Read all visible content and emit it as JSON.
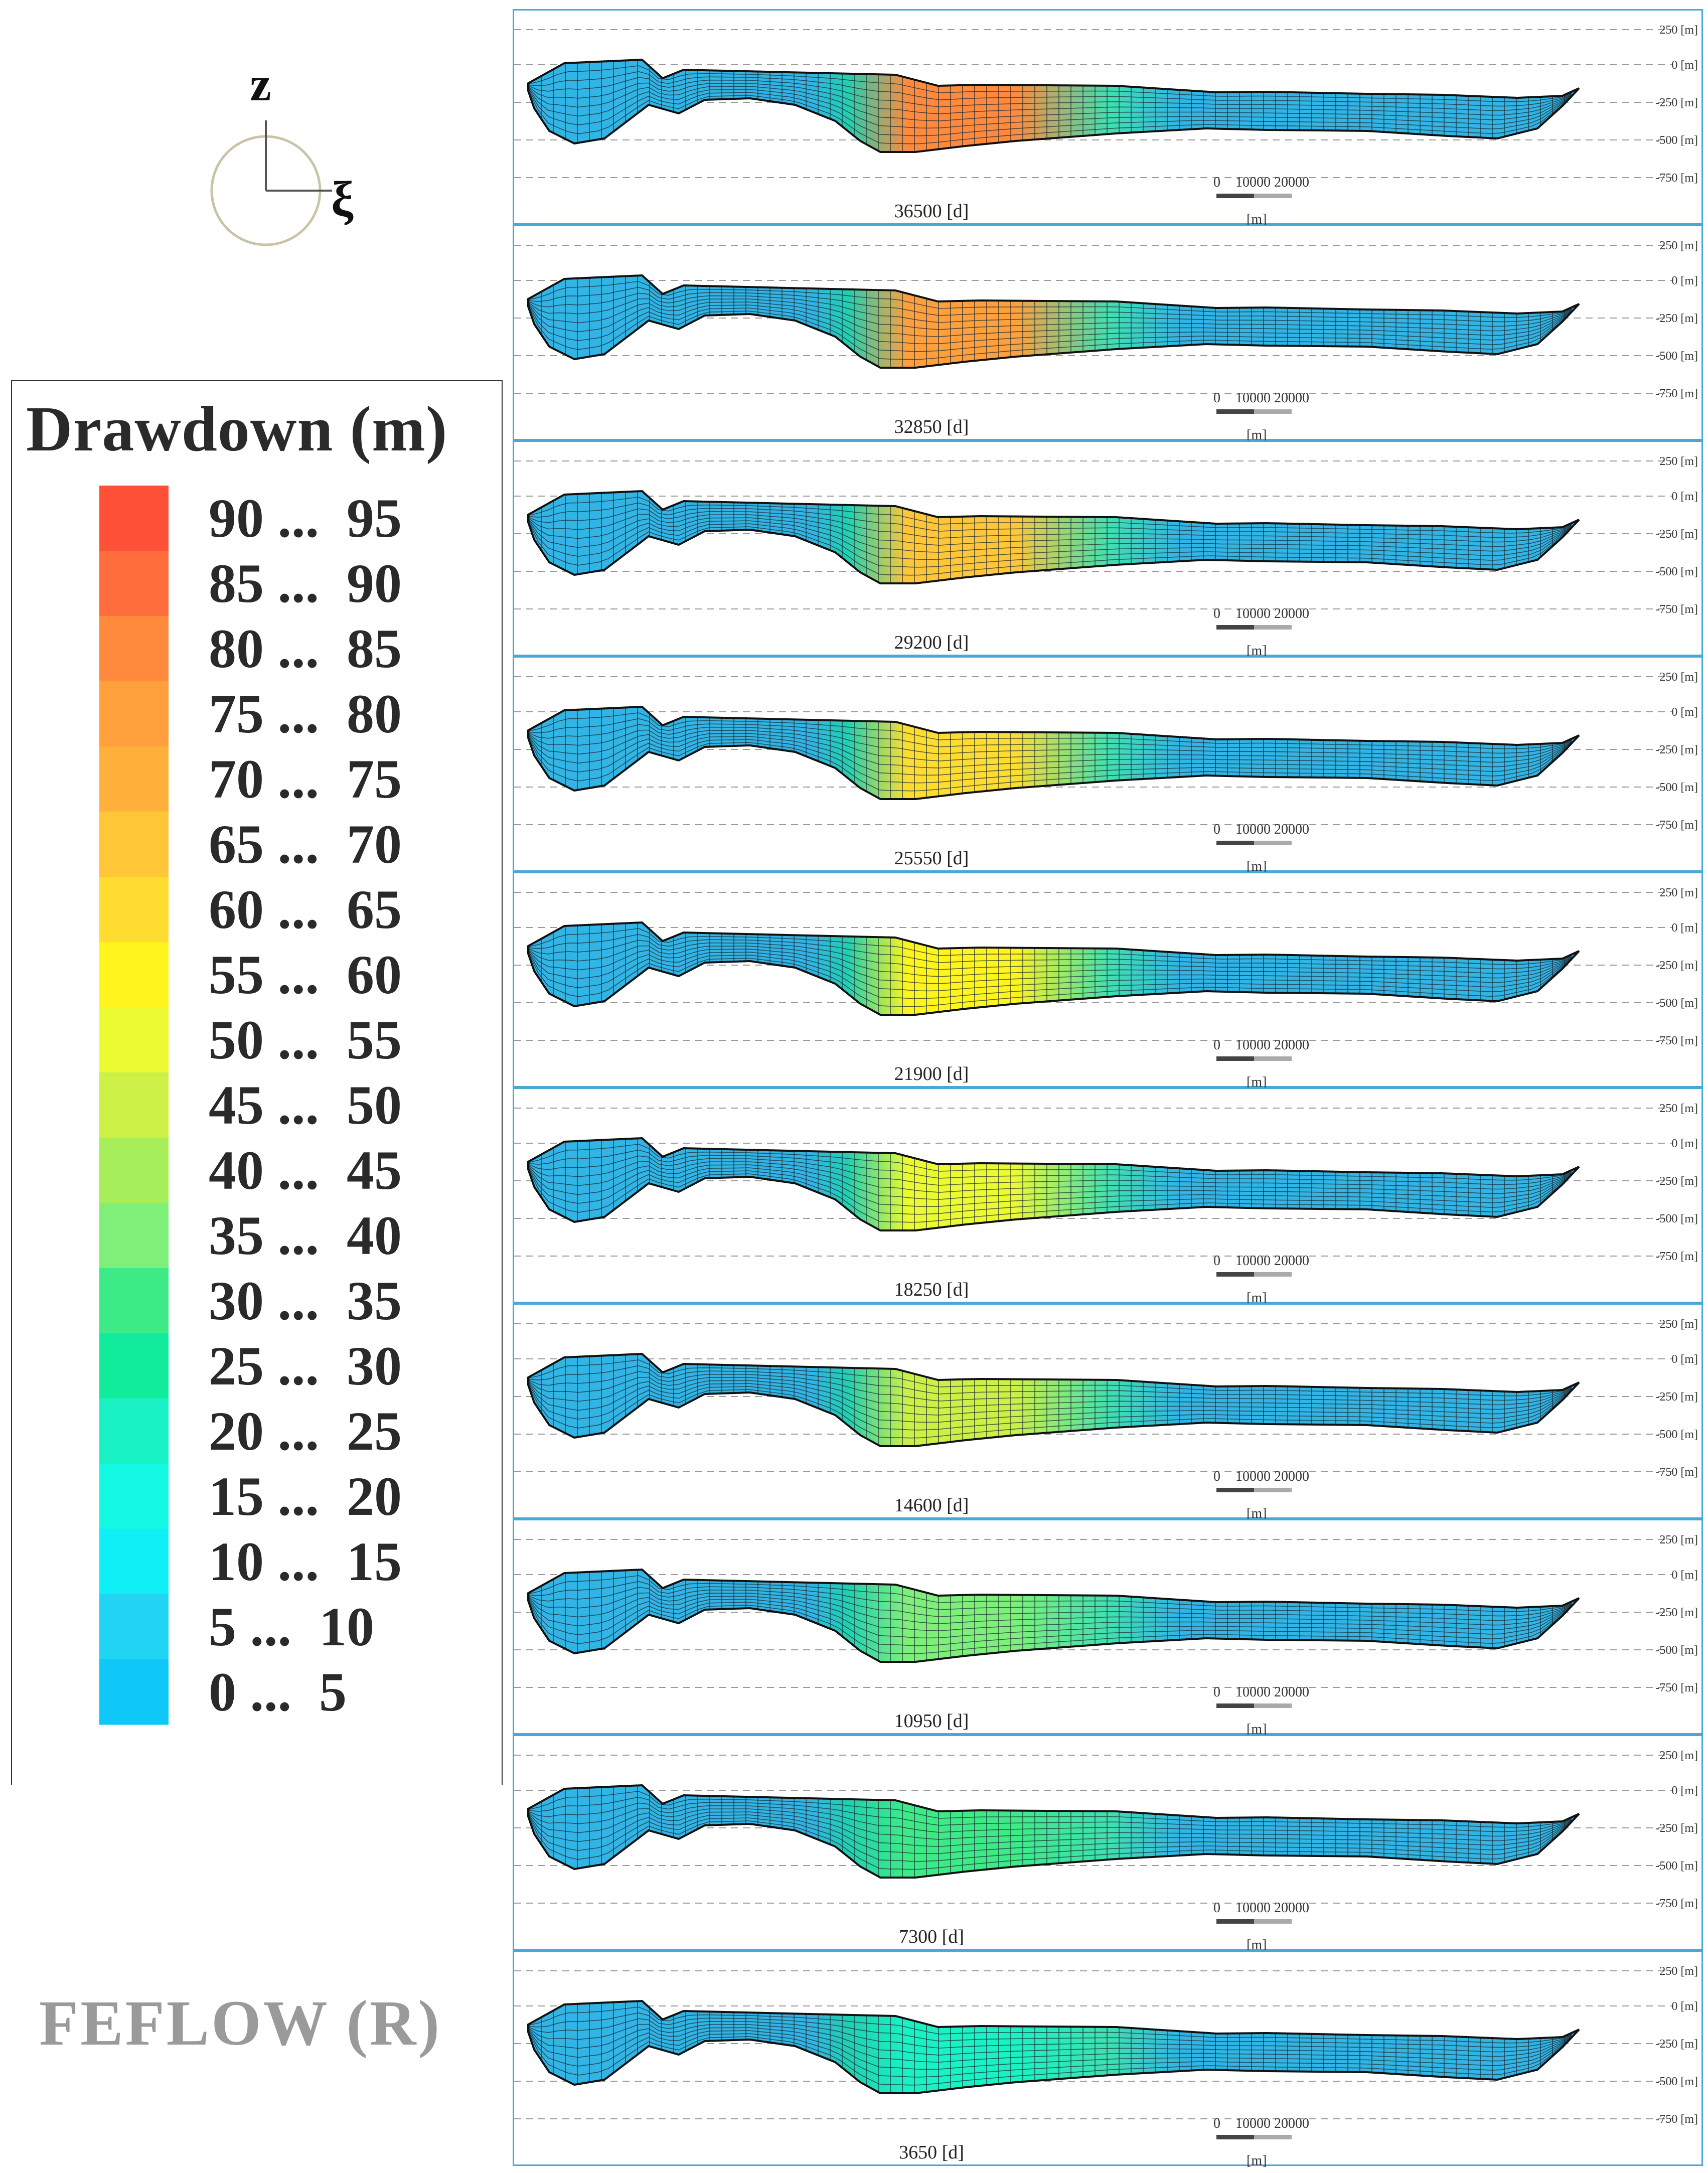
{
  "axes": {
    "vertical": "z",
    "horizontal": "ξ"
  },
  "legend": {
    "title": "Drawdown (m)",
    "classes": [
      {
        "label": "90 ...  95",
        "color": "#ff5138"
      },
      {
        "label": "85 ...  90",
        "color": "#ff6d3c"
      },
      {
        "label": "80 ...  85",
        "color": "#ff8a3e"
      },
      {
        "label": "75 ...  80",
        "color": "#ffa03c"
      },
      {
        "label": "70 ...  75",
        "color": "#ffb03a"
      },
      {
        "label": "65 ...  70",
        "color": "#ffc738"
      },
      {
        "label": "60 ...  65",
        "color": "#ffdd30"
      },
      {
        "label": "55 ...  60",
        "color": "#fff41c"
      },
      {
        "label": "50 ...  55",
        "color": "#ecfa32"
      },
      {
        "label": "45 ...  50",
        "color": "#cdf046"
      },
      {
        "label": "40 ...  45",
        "color": "#a6ef5a"
      },
      {
        "label": "35 ...  40",
        "color": "#7ef07a"
      },
      {
        "label": "30 ...  35",
        "color": "#3deb86"
      },
      {
        "label": "25 ...  30",
        "color": "#11ec9c"
      },
      {
        "label": "20 ...  25",
        "color": "#19f2c4"
      },
      {
        "label": "15 ...  20",
        "color": "#12f8e2"
      },
      {
        "label": "10 ...  15",
        "color": "#0ff0f6"
      },
      {
        "label": "5 ...  10",
        "color": "#22d4f4"
      },
      {
        "label": "0 ...  5",
        "color": "#10c8f8"
      }
    ]
  },
  "brand": "FEFLOW (R)",
  "section": {
    "tick_labels": [
      "250 [m]",
      "0 [m]",
      "-250 [m]",
      "-500 [m]",
      "-750 [m]"
    ],
    "scale_bar": {
      "ticks": [
        "0",
        "10000",
        "20000"
      ],
      "unit": "[m]"
    }
  },
  "snapshots": [
    {
      "label": "36500 [d]",
      "peak_drawdown_class": "80 ... 85"
    },
    {
      "label": "32850 [d]",
      "peak_drawdown_class": "75 ... 80"
    },
    {
      "label": "29200 [d]",
      "peak_drawdown_class": "65 ... 70"
    },
    {
      "label": "25550 [d]",
      "peak_drawdown_class": "60 ... 65"
    },
    {
      "label": "21900 [d]",
      "peak_drawdown_class": "55 ... 60"
    },
    {
      "label": "18250 [d]",
      "peak_drawdown_class": "50 ... 55"
    },
    {
      "label": "14600 [d]",
      "peak_drawdown_class": "45 ... 50"
    },
    {
      "label": "10950 [d]",
      "peak_drawdown_class": "35 ... 40"
    },
    {
      "label": "7300 [d]",
      "peak_drawdown_class": "30 ... 35"
    },
    {
      "label": "3650 [d]",
      "peak_drawdown_class": "20 ... 25"
    }
  ],
  "colors": {
    "mesh_base": "#32b4e4",
    "mesh_line": "#1b2a33",
    "panel_border": "#4aa8d8"
  }
}
